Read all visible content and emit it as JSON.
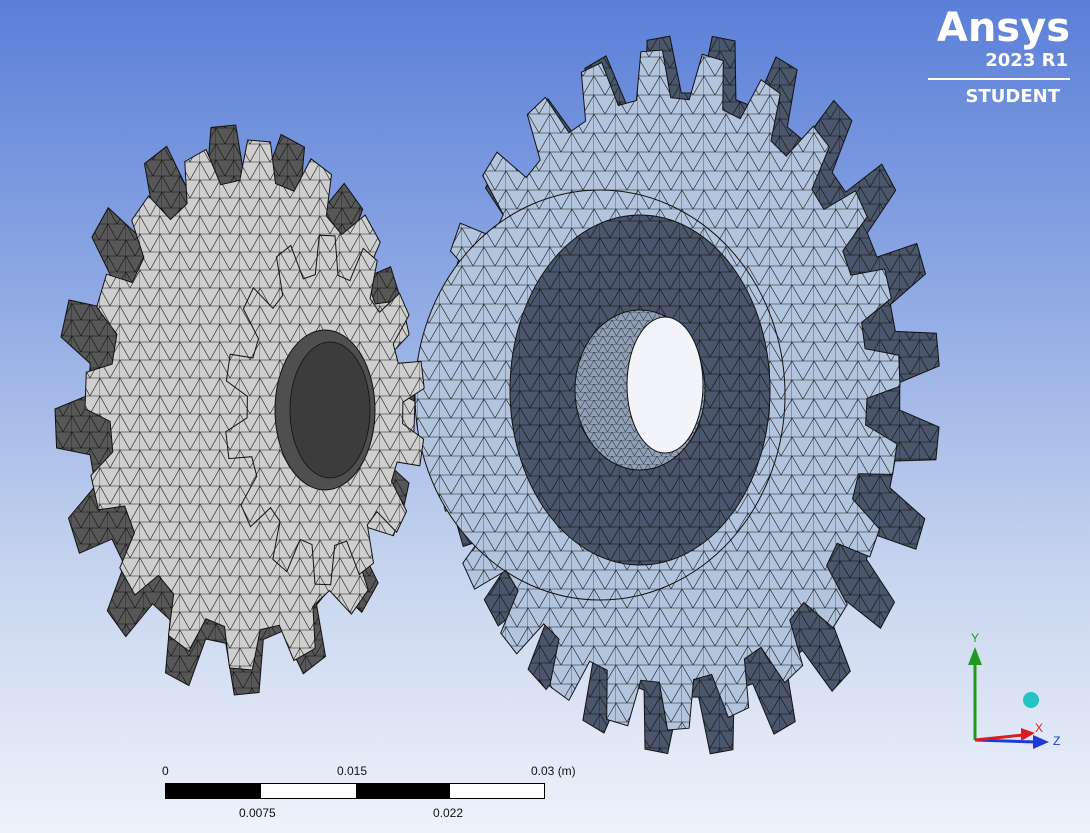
{
  "logo": {
    "brand": "Ansys",
    "version": "2023 R1",
    "edition": "STUDENT"
  },
  "scale_bar": {
    "unit": "(m)",
    "top_labels": [
      "0",
      "0.015",
      "0.03 (m)"
    ],
    "bottom_labels": [
      "0.0075",
      "0.022"
    ]
  },
  "triad": {
    "labels": {
      "y": "Y",
      "x": "X",
      "z": "Z"
    },
    "colors": {
      "y": "#1f9a1f",
      "x": "#d42020",
      "z": "#1f3ad4",
      "center": "#22c4c4"
    }
  },
  "colors": {
    "background_top": "#5b7fd8",
    "background_bottom": "#eef2fb",
    "pinion_face": "#c8c8c8",
    "pinion_dark": "#4d4d4d",
    "gear_face": "#a9bcd6",
    "gear_dark": "#3e4a5e",
    "mesh_line": "#1a1a1a"
  }
}
